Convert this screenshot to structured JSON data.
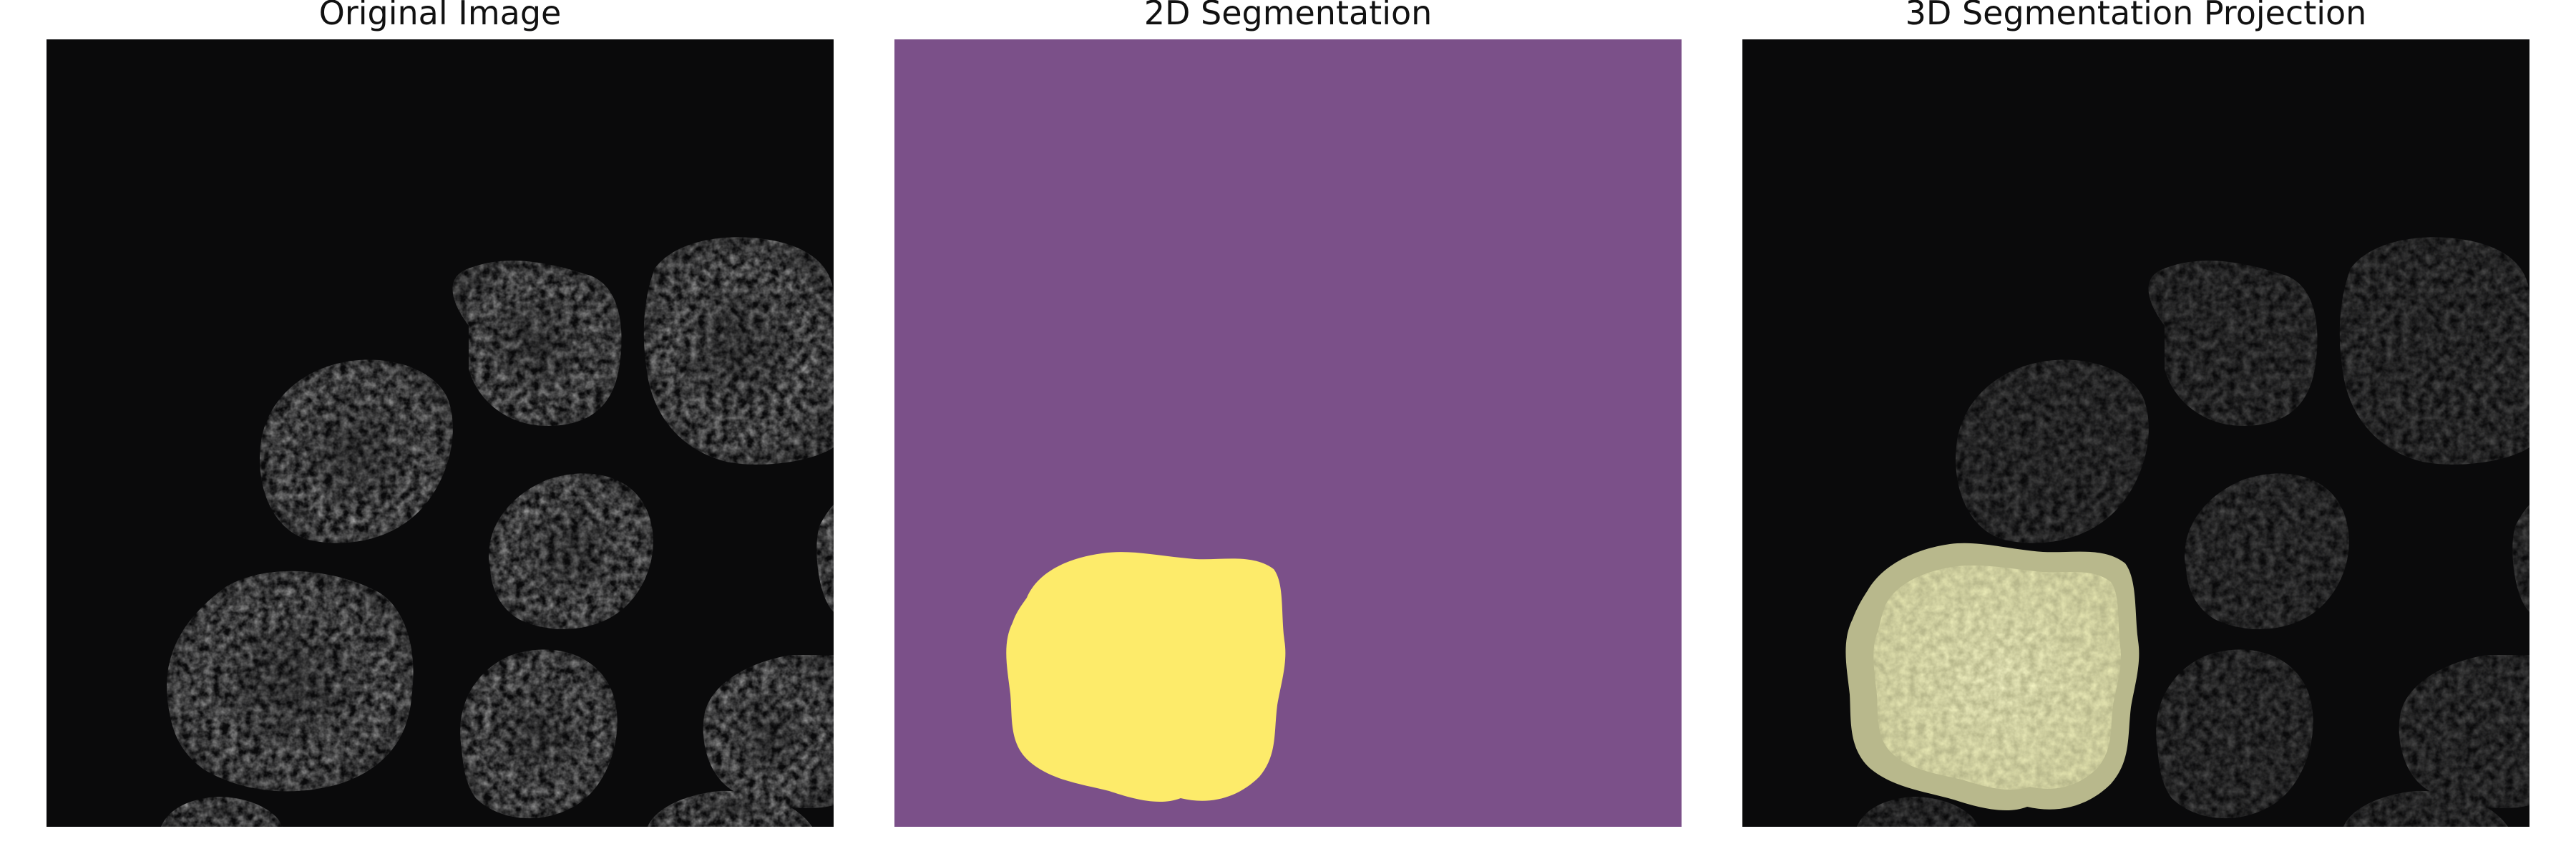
{
  "titles": {
    "original": "Original Image",
    "seg2d": "2D Segmentation",
    "seg3d": "3D Segmentation Projection"
  },
  "colors": {
    "background_dark": "#0a0a0b",
    "nucleus_gray": "#8a8a8a",
    "seg_background": "#7b5089",
    "seg_foreground": "#fdeb6a",
    "overlay_tint": "#f7f7c8",
    "overlay_dim_nucleus": "#4a4a4a"
  }
}
